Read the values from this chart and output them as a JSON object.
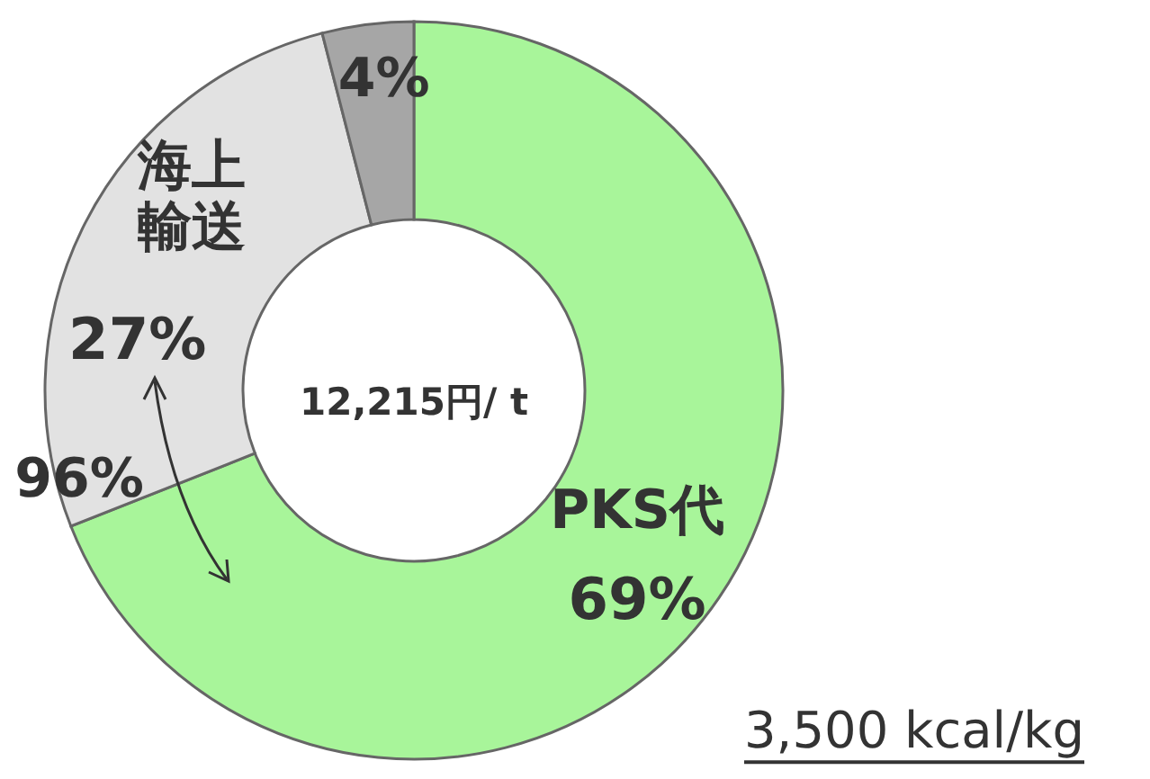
{
  "chart_data": {
    "type": "donut",
    "categories": [
      "PKS代",
      "海上輸送",
      null
    ],
    "values": [
      69,
      27,
      4
    ],
    "colors": [
      "#a8f59a",
      "#e2e2e2",
      "#a6a6a6"
    ],
    "value_labels": [
      "69%",
      "27%",
      "4%"
    ],
    "annotations": [
      "12,215円/ t",
      "96%",
      "3,500 kcal/kg"
    ]
  }
}
